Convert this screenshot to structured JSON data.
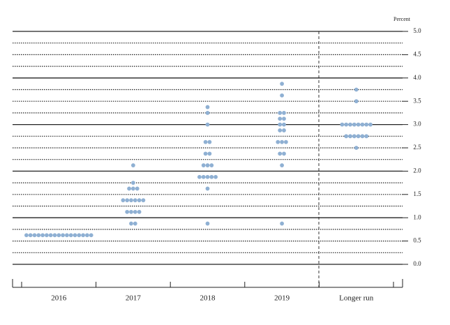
{
  "chart_data": {
    "type": "dot",
    "y_label": "Percent",
    "categories": [
      "2016",
      "2017",
      "2018",
      "2019",
      "Longer run"
    ],
    "dots": [
      [
        {
          "rate": 0.625,
          "count": 17
        }
      ],
      [
        {
          "rate": 0.875,
          "count": 2
        },
        {
          "rate": 1.125,
          "count": 4
        },
        {
          "rate": 1.375,
          "count": 6
        },
        {
          "rate": 1.625,
          "count": 3
        },
        {
          "rate": 1.75,
          "count": 1
        },
        {
          "rate": 2.125,
          "count": 1
        }
      ],
      [
        {
          "rate": 0.875,
          "count": 1
        },
        {
          "rate": 1.625,
          "count": 1
        },
        {
          "rate": 1.875,
          "count": 5
        },
        {
          "rate": 2.125,
          "count": 3
        },
        {
          "rate": 2.375,
          "count": 2
        },
        {
          "rate": 2.625,
          "count": 2
        },
        {
          "rate": 3.0,
          "count": 1
        },
        {
          "rate": 3.25,
          "count": 1
        },
        {
          "rate": 3.375,
          "count": 1
        }
      ],
      [
        {
          "rate": 0.875,
          "count": 1
        },
        {
          "rate": 2.125,
          "count": 1
        },
        {
          "rate": 2.375,
          "count": 2
        },
        {
          "rate": 2.625,
          "count": 3
        },
        {
          "rate": 2.875,
          "count": 2
        },
        {
          "rate": 3.0,
          "count": 2
        },
        {
          "rate": 3.125,
          "count": 2
        },
        {
          "rate": 3.25,
          "count": 2
        },
        {
          "rate": 3.625,
          "count": 1
        },
        {
          "rate": 3.875,
          "count": 1
        }
      ],
      [
        {
          "rate": 2.5,
          "count": 1
        },
        {
          "rate": 2.75,
          "count": 6
        },
        {
          "rate": 3.0,
          "count": 8
        },
        {
          "rate": 3.5,
          "count": 1
        },
        {
          "rate": 3.75,
          "count": 1
        }
      ]
    ],
    "color": "#8fb0d3",
    "ylim": [
      0,
      5
    ],
    "yticks": [
      {
        "value": 0,
        "label": "0.0"
      },
      {
        "value": 0.5,
        "label": "0.5"
      },
      {
        "value": 1,
        "label": "1.0"
      },
      {
        "value": 1.5,
        "label": "1.5"
      },
      {
        "value": 2,
        "label": "2.0"
      },
      {
        "value": 2.5,
        "label": "2.5"
      },
      {
        "value": 3,
        "label": "3.0"
      },
      {
        "value": 3.5,
        "label": "3.5"
      },
      {
        "value": 4,
        "label": "4.0"
      },
      {
        "value": 4.5,
        "label": "4.5"
      },
      {
        "value": 5,
        "label": "5.0"
      }
    ],
    "minor_grid_step": 0.25,
    "grid": true
  }
}
